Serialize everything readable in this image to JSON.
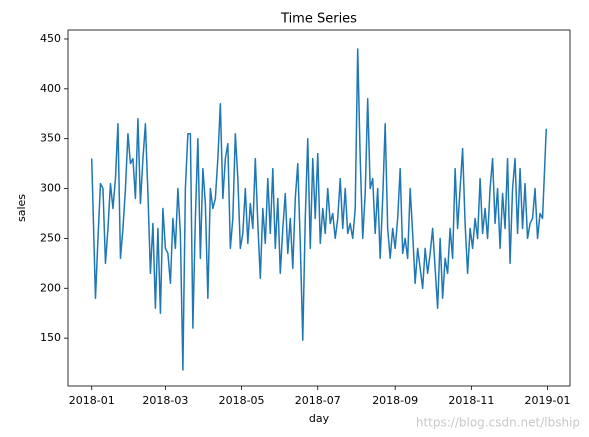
{
  "chart_data": {
    "type": "line",
    "title": "Time Series",
    "x_label": "day",
    "y_label": "sales",
    "watermark": "https://blog.csdn.net/lbship",
    "xlim": [
      -19,
      383
    ],
    "ylim": [
      102,
      459
    ],
    "xticks": [
      {
        "value": 0,
        "label": "2018-01"
      },
      {
        "value": 59,
        "label": "2018-03"
      },
      {
        "value": 120,
        "label": "2018-05"
      },
      {
        "value": 181,
        "label": "2018-07"
      },
      {
        "value": 243,
        "label": "2018-09"
      },
      {
        "value": 304,
        "label": "2018-11"
      },
      {
        "value": 365,
        "label": "2019-01"
      }
    ],
    "yticks": [
      150,
      200,
      250,
      300,
      350,
      400,
      450
    ],
    "grid": false,
    "series": [
      {
        "color": "#1f77b4",
        "x": [
          0,
          3,
          5,
          7,
          9,
          11,
          13,
          15,
          17,
          19,
          21,
          23,
          25,
          27,
          29,
          31,
          33,
          35,
          37,
          39,
          41,
          43,
          45,
          47,
          49,
          51,
          53,
          55,
          57,
          59,
          61,
          63,
          65,
          67,
          69,
          71,
          73,
          75,
          77,
          79,
          81,
          83,
          85,
          87,
          89,
          91,
          93,
          95,
          97,
          99,
          101,
          103,
          105,
          107,
          109,
          111,
          113,
          115,
          117,
          119,
          121,
          123,
          125,
          127,
          129,
          131,
          133,
          135,
          137,
          139,
          141,
          143,
          145,
          147,
          149,
          151,
          153,
          155,
          157,
          159,
          161,
          163,
          165,
          167,
          169,
          171,
          173,
          175,
          177,
          179,
          181,
          183,
          185,
          187,
          189,
          191,
          193,
          195,
          197,
          199,
          201,
          203,
          205,
          207,
          209,
          211,
          213,
          215,
          217,
          219,
          221,
          223,
          225,
          227,
          229,
          231,
          233,
          235,
          237,
          239,
          241,
          243,
          245,
          247,
          249,
          251,
          253,
          255,
          257,
          259,
          261,
          263,
          265,
          267,
          269,
          271,
          273,
          275,
          277,
          279,
          281,
          283,
          285,
          287,
          289,
          291,
          293,
          295,
          297,
          299,
          301,
          303,
          305,
          307,
          309,
          311,
          313,
          315,
          317,
          319,
          321,
          323,
          325,
          327,
          329,
          331,
          333,
          335,
          337,
          339,
          341,
          343,
          345,
          347,
          349,
          351,
          353,
          355,
          357,
          359,
          361,
          364
        ],
        "values": [
          330,
          190,
          250,
          305,
          300,
          225,
          260,
          305,
          280,
          310,
          365,
          230,
          260,
          300,
          355,
          325,
          330,
          290,
          370,
          285,
          330,
          365,
          295,
          215,
          265,
          180,
          260,
          175,
          280,
          240,
          235,
          205,
          270,
          240,
          300,
          255,
          118,
          300,
          355,
          355,
          160,
          270,
          350,
          230,
          320,
          285,
          190,
          300,
          280,
          290,
          330,
          385,
          290,
          330,
          345,
          240,
          270,
          355,
          310,
          240,
          255,
          300,
          245,
          285,
          260,
          330,
          265,
          210,
          280,
          245,
          310,
          255,
          320,
          240,
          290,
          215,
          260,
          295,
          235,
          270,
          220,
          290,
          325,
          245,
          148,
          270,
          350,
          240,
          330,
          270,
          335,
          245,
          280,
          255,
          300,
          265,
          275,
          250,
          270,
          310,
          260,
          300,
          255,
          265,
          250,
          280,
          440,
          330,
          250,
          295,
          390,
          300,
          310,
          255,
          300,
          230,
          290,
          365,
          260,
          230,
          260,
          240,
          270,
          320,
          235,
          250,
          230,
          300,
          255,
          205,
          240,
          220,
          200,
          240,
          215,
          235,
          260,
          220,
          180,
          250,
          190,
          230,
          215,
          260,
          230,
          320,
          260,
          300,
          340,
          265,
          215,
          260,
          240,
          270,
          250,
          310,
          255,
          280,
          250,
          300,
          330,
          265,
          300,
          240,
          295,
          260,
          330,
          225,
          300,
          330,
          255,
          320,
          260,
          305,
          250,
          265,
          270,
          300,
          250,
          275,
          270,
          360
        ]
      }
    ]
  }
}
